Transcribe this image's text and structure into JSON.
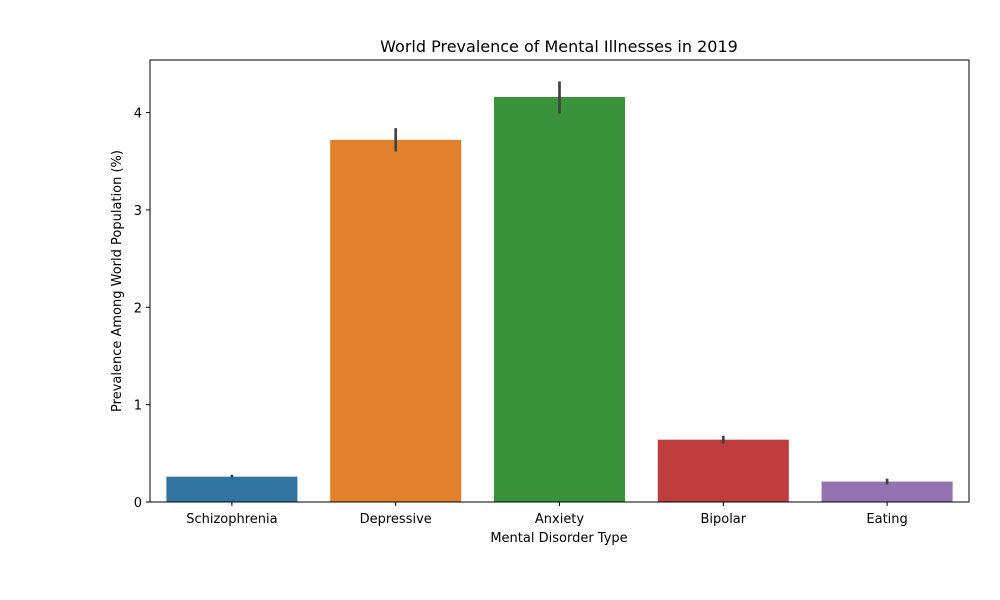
{
  "chart_data": {
    "type": "bar",
    "title": "World Prevalence of Mental Illnesses in 2019",
    "xlabel": "Mental Disorder Type",
    "ylabel": "Prevalence Among World Population (%)",
    "categories": [
      "Schizophrenia",
      "Depressive",
      "Anxiety",
      "Bipolar",
      "Eating"
    ],
    "values": [
      0.26,
      3.72,
      4.16,
      0.64,
      0.21
    ],
    "error_low": [
      0.25,
      3.6,
      3.99,
      0.6,
      0.18
    ],
    "error_high": [
      0.28,
      3.84,
      4.32,
      0.68,
      0.24
    ],
    "colors": [
      "#3274a1",
      "#e1812c",
      "#3a923a",
      "#c03d3e",
      "#9372b2"
    ],
    "error_color": "#424242",
    "yticks": [
      0,
      1,
      2,
      3,
      4
    ],
    "ylim": [
      0,
      4.54
    ],
    "grid": false,
    "legend": false
  }
}
